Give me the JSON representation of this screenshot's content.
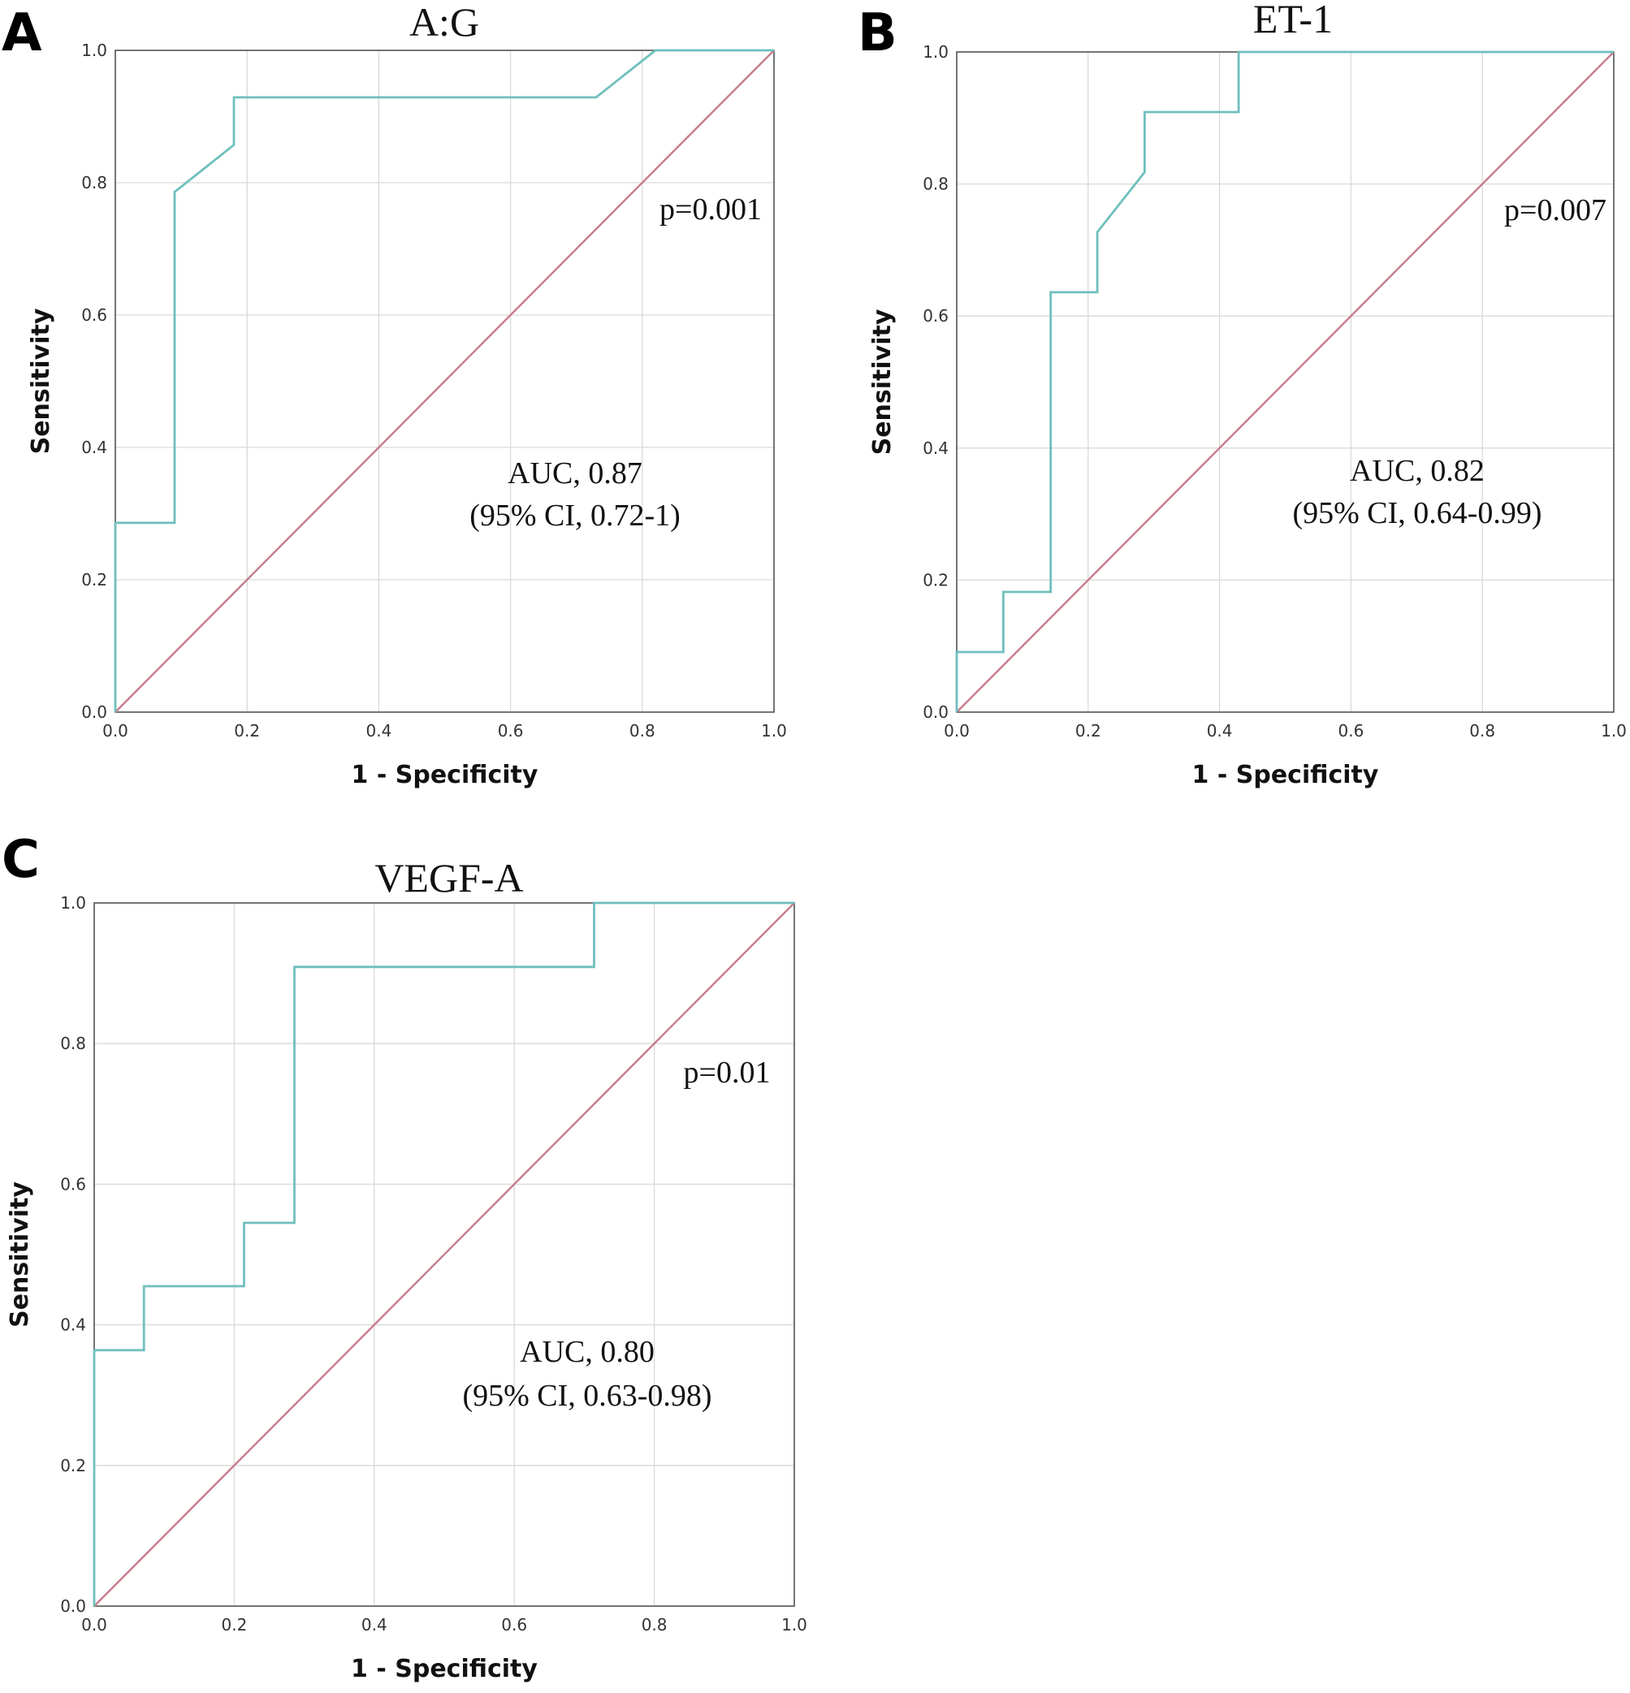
{
  "chart_data": [
    {
      "type": "line",
      "panel": "A",
      "title": "A:G",
      "xlabel": "1 - Specificity",
      "ylabel": "Sensitivity",
      "xlim": [
        0,
        1
      ],
      "ylim": [
        0,
        1
      ],
      "xticks": [
        "0.0",
        "0.2",
        "0.4",
        "0.6",
        "0.8",
        "1.0"
      ],
      "yticks": [
        "0.0",
        "0.2",
        "0.4",
        "0.6",
        "0.8",
        "1.0"
      ],
      "grid": true,
      "annotations": {
        "p_value": "p=0.001",
        "auc": "AUC, 0.87",
        "ci": "(95% CI, 0.72-1)"
      },
      "series": [
        {
          "name": "ROC curve",
          "color": "#6fbfbd",
          "x": [
            0,
            0,
            0.09,
            0.09,
            0.18,
            0.18,
            0.73,
            0.82,
            1.0
          ],
          "y": [
            0,
            0.286,
            0.286,
            0.786,
            0.857,
            0.929,
            0.929,
            1.0,
            1.0
          ]
        },
        {
          "name": "Reference line",
          "color": "#c77b8a",
          "x": [
            0,
            1
          ],
          "y": [
            0,
            1
          ]
        }
      ]
    },
    {
      "type": "line",
      "panel": "B",
      "title": "ET-1",
      "xlabel": "1 - Specificity",
      "ylabel": "Sensitivity",
      "xlim": [
        0,
        1
      ],
      "ylim": [
        0,
        1
      ],
      "xticks": [
        "0.0",
        "0.2",
        "0.4",
        "0.6",
        "0.8",
        "1.0"
      ],
      "yticks": [
        "0.0",
        "0.2",
        "0.4",
        "0.6",
        "0.8",
        "1.0"
      ],
      "grid": true,
      "annotations": {
        "p_value": "p=0.007",
        "auc": "AUC, 0.82",
        "ci": "(95% CI, 0.64-0.99)"
      },
      "series": [
        {
          "name": "ROC curve",
          "color": "#6fbfbd",
          "x": [
            0,
            0,
            0.071,
            0.071,
            0.143,
            0.143,
            0.214,
            0.214,
            0.286,
            0.286,
            0.429,
            0.429,
            1.0
          ],
          "y": [
            0,
            0.091,
            0.091,
            0.182,
            0.182,
            0.636,
            0.636,
            0.727,
            0.818,
            0.909,
            0.909,
            1.0,
            1.0
          ]
        },
        {
          "name": "Reference line",
          "color": "#c77b8a",
          "x": [
            0,
            1
          ],
          "y": [
            0,
            1
          ]
        }
      ]
    },
    {
      "type": "line",
      "panel": "C",
      "title": "VEGF-A",
      "xlabel": "1 - Specificity",
      "ylabel": "Sensitivity",
      "xlim": [
        0,
        1
      ],
      "ylim": [
        0,
        1
      ],
      "xticks": [
        "0.0",
        "0.2",
        "0.4",
        "0.6",
        "0.8",
        "1.0"
      ],
      "yticks": [
        "0.0",
        "0.2",
        "0.4",
        "0.6",
        "0.8",
        "1.0"
      ],
      "grid": true,
      "annotations": {
        "p_value": "p=0.01",
        "auc": "AUC, 0.80",
        "ci": "(95% CI, 0.63-0.98)"
      },
      "series": [
        {
          "name": "ROC curve",
          "color": "#6fbfbd",
          "x": [
            0,
            0,
            0.071,
            0.071,
            0.214,
            0.214,
            0.286,
            0.286,
            0.714,
            0.714,
            1.0
          ],
          "y": [
            0,
            0.364,
            0.364,
            0.455,
            0.455,
            0.545,
            0.545,
            0.909,
            0.909,
            1.0,
            1.0
          ]
        },
        {
          "name": "Reference line",
          "color": "#c77b8a",
          "x": [
            0,
            1
          ],
          "y": [
            0,
            1
          ]
        }
      ]
    }
  ]
}
